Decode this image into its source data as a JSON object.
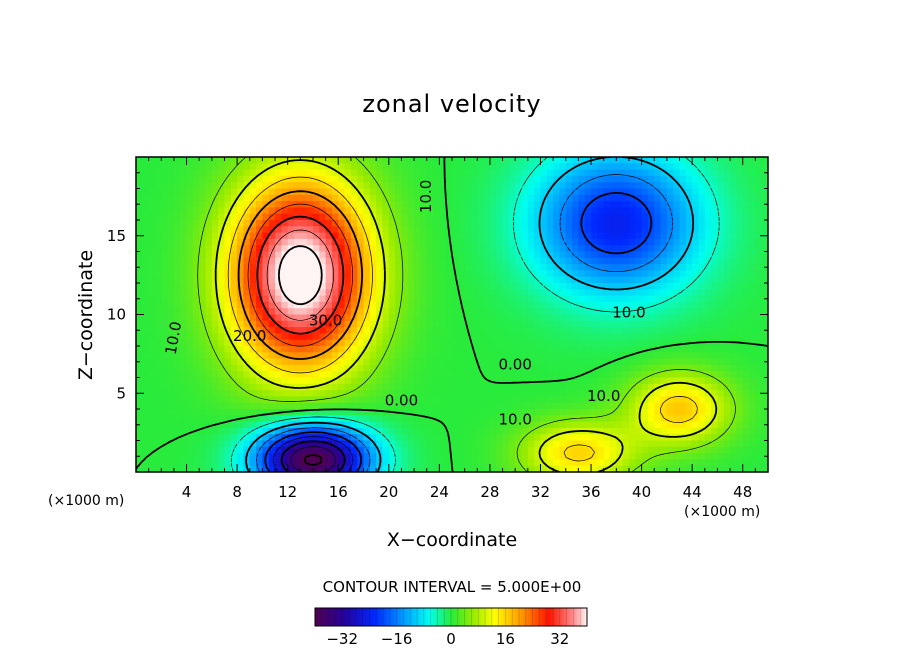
{
  "chart_data": {
    "type": "heatmap",
    "title": "zonal velocity",
    "xlabel": "X−coordinate",
    "ylabel": "Z−coordinate",
    "x_units": "(×1000 m)",
    "y_units": "(×1000 m)",
    "xlim": [
      0,
      50
    ],
    "ylim": [
      0,
      20
    ],
    "x_ticks": [
      4,
      8,
      12,
      16,
      20,
      24,
      28,
      32,
      36,
      40,
      44,
      48
    ],
    "x_tick_labels": [
      "4",
      "8",
      "12",
      "16",
      "20",
      "24",
      "28",
      "32",
      "36",
      "40",
      "44",
      "48"
    ],
    "y_ticks": [
      5,
      10,
      15
    ],
    "y_tick_labels": [
      "5",
      "10",
      "15"
    ],
    "contour_interval_label": "CONTOUR INTERVAL = 5.000E+00",
    "contour_interval": 5,
    "color_range": [
      -40,
      40
    ],
    "colorbar": {
      "ticks": [
        -32,
        -16,
        0,
        16,
        32
      ],
      "tick_labels": [
        "−32",
        "−16",
        "0",
        "16",
        "32"
      ]
    },
    "features": [
      {
        "kind": "max",
        "x": 13,
        "z": 12.5,
        "sx": 5.5,
        "sz": 6.0,
        "amp": 44
      },
      {
        "kind": "min",
        "x": 38,
        "z": 15.8,
        "sx": 6.5,
        "sz": 4.5,
        "amp": -24
      },
      {
        "kind": "min",
        "x": 14,
        "z": 0.8,
        "sx": 4.5,
        "sz": 2.2,
        "amp": -42
      },
      {
        "kind": "max",
        "x": 43,
        "z": 4.0,
        "sx": 4.0,
        "sz": 2.3,
        "amp": 17
      },
      {
        "kind": "max",
        "x": 35,
        "z": 1.2,
        "sx": 4.5,
        "sz": 2.0,
        "amp": 16
      }
    ],
    "contour_labels": [
      {
        "text": "30.0",
        "x": 15,
        "z": 9.6
      },
      {
        "text": "20.0",
        "x": 9,
        "z": 8.6
      },
      {
        "text": "10.0",
        "x": 3,
        "z": 8.5,
        "rotate": -80
      },
      {
        "text": "10.0",
        "x": 39,
        "z": 10.1
      },
      {
        "text": "10.0",
        "x": 23,
        "z": 17.5,
        "rotate": -90
      },
      {
        "text": "0.00",
        "x": 21,
        "z": 4.5
      },
      {
        "text": "0.00",
        "x": 30,
        "z": 6.8
      },
      {
        "text": "10.0",
        "x": 30,
        "z": 3.3
      },
      {
        "text": "10.0",
        "x": 37,
        "z": 4.8
      }
    ]
  }
}
